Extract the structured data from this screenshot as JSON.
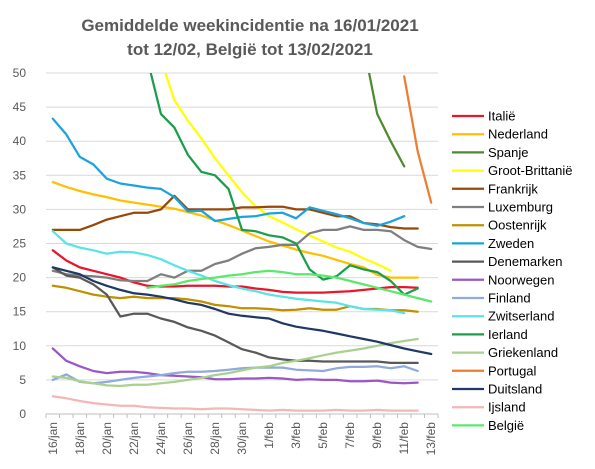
{
  "chart_data": {
    "type": "line",
    "title_lines": [
      "Gemiddelde weekincidentie  na 16/01/2021",
      "tot 12/02, België tot 13/02/2021"
    ],
    "x": [
      "16/jan",
      "17/jan",
      "18/jan",
      "19/jan",
      "20/jan",
      "21/jan",
      "22/jan",
      "23/jan",
      "24/jan",
      "25/jan",
      "26/jan",
      "27/jan",
      "28/jan",
      "29/jan",
      "30/jan",
      "31/jan",
      "1/feb",
      "2/feb",
      "3/feb",
      "4/feb",
      "5/feb",
      "6/feb",
      "7/feb",
      "8/feb",
      "9/feb",
      "10/feb",
      "11/feb",
      "12/feb",
      "13/feb"
    ],
    "x_tick_labels": [
      "16/jan",
      "18/jan",
      "20/jan",
      "22/jan",
      "24/jan",
      "26/jan",
      "28/jan",
      "30/jan",
      "1/feb",
      "3/feb",
      "5/feb",
      "7/feb",
      "9/feb",
      "11/feb",
      "13/feb"
    ],
    "ylim": [
      0,
      50
    ],
    "y_ticks": [
      0,
      5,
      10,
      15,
      20,
      25,
      30,
      35,
      40,
      45,
      50
    ],
    "grid": true,
    "legend_position": "right",
    "series": [
      {
        "name": "Italië",
        "color": "#e8162b",
        "values": [
          24,
          22.5,
          21.5,
          21,
          20.5,
          20,
          19.3,
          18.8,
          18.7,
          18.7,
          18.8,
          18.8,
          18.8,
          18.7,
          18.7,
          18.4,
          18.2,
          17.9,
          17.8,
          17.8,
          17.8,
          17.9,
          18,
          18.2,
          18.4,
          18.6,
          18.6,
          18.5,
          null
        ]
      },
      {
        "name": "Nederland",
        "color": "#ffc000",
        "values": [
          34,
          33.3,
          32.7,
          32.2,
          31.8,
          31.3,
          31,
          30.7,
          30.4,
          30.1,
          29.6,
          29.1,
          28.4,
          27.7,
          26.9,
          26.1,
          25.3,
          24.7,
          24.1,
          23.6,
          23.2,
          22.6,
          22,
          21.5,
          20.4,
          20,
          20,
          20,
          null
        ]
      },
      {
        "name": "Spanje",
        "color": "#4e8b2e",
        "values": [
          null,
          null,
          null,
          null,
          null,
          null,
          null,
          null,
          null,
          null,
          null,
          null,
          null,
          null,
          null,
          null,
          null,
          null,
          null,
          null,
          null,
          null,
          null,
          54,
          44,
          40,
          36.3,
          null,
          null
        ]
      },
      {
        "name": "Groot-Brittanië",
        "color": "#ffff00",
        "values": [
          null,
          null,
          null,
          null,
          null,
          null,
          null,
          null,
          52,
          46,
          43,
          40.4,
          37.5,
          35,
          32.5,
          30.5,
          29,
          28.1,
          27.1,
          26.2,
          25.3,
          24.4,
          23.8,
          22.8,
          22,
          21,
          null,
          null,
          null
        ]
      },
      {
        "name": "Frankrijk",
        "color": "#984807",
        "values": [
          27,
          27,
          27,
          27.7,
          28.5,
          29,
          29.5,
          29.5,
          30,
          32,
          30,
          30,
          30,
          30,
          30.3,
          30.3,
          30.4,
          30.4,
          30,
          30,
          29.5,
          29,
          29,
          28,
          27.8,
          27.4,
          27.2,
          27.2,
          null
        ]
      },
      {
        "name": "Luxemburg",
        "color": "#7f7f7f",
        "values": [
          21,
          20.5,
          20.3,
          20.2,
          20,
          19.6,
          19.5,
          19.5,
          20.5,
          20,
          21,
          21,
          22,
          22.5,
          23.5,
          24.3,
          24.5,
          24.8,
          24.8,
          26.5,
          27,
          27,
          27.5,
          27,
          27,
          26.8,
          25.5,
          24.5,
          24.2
        ]
      },
      {
        "name": "Oostenrijk",
        "color": "#bf9000",
        "values": [
          18.8,
          18.5,
          18,
          17.5,
          17.2,
          17,
          17.2,
          17,
          17,
          17,
          16.8,
          16.5,
          16,
          15.8,
          15.5,
          15.5,
          15.4,
          15.2,
          15.3,
          15.5,
          15.3,
          15.3,
          15.8,
          15.4,
          15.4,
          15.2,
          15.2,
          15,
          null
        ]
      },
      {
        "name": "Zweden",
        "color": "#1ba3e0",
        "values": [
          43.3,
          41,
          37.7,
          36.6,
          34.5,
          33.8,
          33.5,
          33.2,
          33,
          31.8,
          29.7,
          29.8,
          28.3,
          28.6,
          28.9,
          29,
          29.4,
          29.5,
          28.7,
          30.3,
          29.8,
          29.3,
          28.7,
          28,
          27.6,
          28.2,
          29,
          null,
          null
        ]
      },
      {
        "name": "Denemarken",
        "color": "#595959",
        "values": [
          21.5,
          20.3,
          20,
          19,
          17.5,
          14.3,
          14.7,
          14.7,
          14,
          13.5,
          12.7,
          12.2,
          11.5,
          10.5,
          9.5,
          9,
          8.3,
          8,
          7.8,
          7.8,
          7.7,
          7.7,
          7.7,
          7.7,
          7.7,
          7.5,
          7.5,
          7.5,
          null
        ]
      },
      {
        "name": "Noorwegen",
        "color": "#9a58c7",
        "values": [
          9.6,
          7.8,
          7,
          6.3,
          6,
          6.2,
          6.2,
          6,
          5.7,
          5.6,
          5.5,
          5.4,
          5.1,
          5.1,
          5.2,
          5.2,
          5.3,
          5.2,
          5,
          5.1,
          5,
          5,
          4.8,
          4.8,
          4.9,
          4.6,
          4.5,
          4.6,
          null
        ]
      },
      {
        "name": "Finland",
        "color": "#8faadc",
        "values": [
          5,
          5.8,
          4.7,
          4.5,
          4.7,
          5,
          5.3,
          5.5,
          5.7,
          6,
          6.2,
          6.2,
          6.3,
          6.5,
          6.7,
          6.8,
          6.8,
          6.8,
          6.5,
          6.4,
          6.3,
          6.7,
          6.9,
          6.9,
          7,
          6.7,
          7,
          6.3,
          null
        ]
      },
      {
        "name": "Zwitserland",
        "color": "#5ce3e6",
        "values": [
          26.8,
          25,
          24.4,
          24,
          23.5,
          23.8,
          23.7,
          23.3,
          22.7,
          21.8,
          21,
          20.3,
          19.5,
          18.9,
          18.4,
          18,
          17.5,
          17.2,
          16.9,
          16.7,
          16.5,
          16.3,
          15.8,
          15.4,
          15.3,
          15.2,
          14.8,
          null,
          null
        ]
      },
      {
        "name": "Ierland",
        "color": "#1b9e4b",
        "values": [
          null,
          null,
          null,
          null,
          null,
          null,
          null,
          52,
          44,
          42,
          38,
          35.5,
          35,
          33,
          27,
          26.8,
          26.2,
          25.9,
          25,
          21.2,
          19.7,
          20.2,
          21.8,
          21.2,
          20.8,
          19.5,
          17.5,
          18.4,
          null
        ]
      },
      {
        "name": "Griekenland",
        "color": "#a9d18e",
        "values": [
          5.5,
          5.3,
          4.8,
          4.5,
          4.2,
          4.1,
          4.3,
          4.3,
          4.5,
          4.7,
          5,
          5.3,
          5.7,
          6,
          6.4,
          6.8,
          7,
          7.5,
          7.8,
          8.2,
          8.6,
          9,
          9.3,
          9.6,
          10,
          10.4,
          10.7,
          11,
          null
        ]
      },
      {
        "name": "Portugal",
        "color": "#ed7d31",
        "values": [
          null,
          null,
          null,
          null,
          null,
          null,
          null,
          null,
          null,
          null,
          null,
          null,
          null,
          null,
          null,
          null,
          null,
          null,
          null,
          null,
          null,
          null,
          null,
          null,
          null,
          null,
          49.5,
          38.5,
          31
        ]
      },
      {
        "name": "Duitsland",
        "color": "#203864",
        "values": [
          21.5,
          21,
          20.5,
          19.5,
          18.8,
          18.2,
          17.7,
          17.5,
          17.2,
          16.8,
          16.3,
          16,
          15.4,
          14.7,
          14.4,
          14.2,
          14,
          13.3,
          12.8,
          12.5,
          12.2,
          11.8,
          11.4,
          11,
          10.6,
          10.1,
          9.6,
          9.2,
          8.8
        ]
      },
      {
        "name": "Ijsland",
        "color": "#f4b6b6",
        "values": [
          2.6,
          2.3,
          1.9,
          1.6,
          1.4,
          1.2,
          1.2,
          1,
          0.9,
          0.8,
          0.8,
          0.7,
          0.8,
          0.8,
          0.7,
          0.6,
          0.5,
          0.6,
          0.5,
          0.5,
          0.5,
          0.6,
          0.5,
          0.5,
          0.6,
          0.5,
          0.5,
          0.5,
          null
        ]
      },
      {
        "name": "België",
        "color": "#5be86b",
        "values": [
          null,
          null,
          null,
          null,
          null,
          null,
          null,
          18.5,
          18.8,
          19,
          19.5,
          19.8,
          20,
          20.3,
          20.5,
          20.8,
          21,
          20.8,
          20.5,
          20.5,
          20.3,
          20,
          19.5,
          19,
          18.5,
          18,
          17.5,
          17,
          16.5
        ]
      }
    ]
  }
}
